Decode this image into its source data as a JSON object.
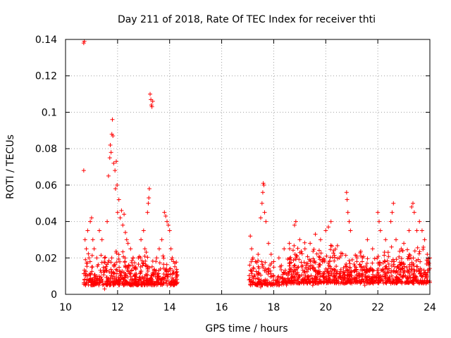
{
  "chart_data": {
    "type": "scatter",
    "title": "Day 211 of 2018, Rate Of TEC Index for receiver thti",
    "xlabel": "GPS time / hours",
    "ylabel": "ROTI / TECUs",
    "xlim": [
      10,
      24
    ],
    "ylim": [
      0,
      0.14
    ],
    "x_ticks": [
      10,
      12,
      14,
      16,
      18,
      20,
      22,
      24
    ],
    "x_tick_labels": [
      "10",
      "12",
      "14",
      "16",
      "18",
      "20",
      "22",
      "24"
    ],
    "y_ticks": [
      0,
      0.02,
      0.04,
      0.06,
      0.08,
      0.1,
      0.12,
      0.14
    ],
    "y_tick_labels": [
      "0",
      "0.02",
      "0.04",
      "0.06",
      "0.08",
      "0.1",
      "0.12",
      "0.14"
    ],
    "grid": true,
    "marker": "+",
    "series": [
      {
        "name": "ROTI",
        "color": "#ff0000",
        "points": [
          [
            10.7,
            0.138
          ],
          [
            10.72,
            0.139
          ],
          [
            10.7,
            0.068
          ],
          [
            10.75,
            0.03
          ],
          [
            10.8,
            0.025
          ],
          [
            10.85,
            0.035
          ],
          [
            10.9,
            0.02
          ],
          [
            10.95,
            0.04
          ],
          [
            11.0,
            0.042
          ],
          [
            11.05,
            0.03
          ],
          [
            11.1,
            0.025
          ],
          [
            11.2,
            0.02
          ],
          [
            11.3,
            0.035
          ],
          [
            11.4,
            0.03
          ],
          [
            11.5,
            0.02
          ],
          [
            11.6,
            0.04
          ],
          [
            11.65,
            0.065
          ],
          [
            11.7,
            0.075
          ],
          [
            11.72,
            0.082
          ],
          [
            11.75,
            0.078
          ],
          [
            11.78,
            0.088
          ],
          [
            11.8,
            0.096
          ],
          [
            11.82,
            0.087
          ],
          [
            11.85,
            0.072
          ],
          [
            11.9,
            0.068
          ],
          [
            11.92,
            0.058
          ],
          [
            11.95,
            0.073
          ],
          [
            11.98,
            0.06
          ],
          [
            12.0,
            0.045
          ],
          [
            12.05,
            0.052
          ],
          [
            12.1,
            0.042
          ],
          [
            12.15,
            0.046
          ],
          [
            12.2,
            0.038
          ],
          [
            12.25,
            0.044
          ],
          [
            12.3,
            0.034
          ],
          [
            12.35,
            0.03
          ],
          [
            12.4,
            0.028
          ],
          [
            12.5,
            0.025
          ],
          [
            12.6,
            0.02
          ],
          [
            12.7,
            0.015
          ],
          [
            12.8,
            0.02
          ],
          [
            12.9,
            0.03
          ],
          [
            13.0,
            0.035
          ],
          [
            13.05,
            0.025
          ],
          [
            13.15,
            0.045
          ],
          [
            13.18,
            0.05
          ],
          [
            13.2,
            0.053
          ],
          [
            13.22,
            0.058
          ],
          [
            13.25,
            0.11
          ],
          [
            13.28,
            0.107
          ],
          [
            13.3,
            0.104
          ],
          [
            13.32,
            0.103
          ],
          [
            13.35,
            0.106
          ],
          [
            13.5,
            0.02
          ],
          [
            13.6,
            0.025
          ],
          [
            13.7,
            0.03
          ],
          [
            13.8,
            0.045
          ],
          [
            13.85,
            0.043
          ],
          [
            13.9,
            0.04
          ],
          [
            13.95,
            0.038
          ],
          [
            14.0,
            0.035
          ],
          [
            14.05,
            0.025
          ],
          [
            14.1,
            0.02
          ],
          [
            14.15,
            0.018
          ],
          [
            14.2,
            0.017
          ],
          [
            14.25,
            0.012
          ],
          [
            14.28,
            0.01
          ],
          [
            11.5,
            0.003
          ],
          [
            12.0,
            0.006
          ],
          [
            12.5,
            0.005
          ],
          [
            13.0,
            0.006
          ],
          [
            13.5,
            0.007
          ],
          [
            14.0,
            0.006
          ],
          [
            17.1,
            0.032
          ],
          [
            17.15,
            0.025
          ],
          [
            17.2,
            0.02
          ],
          [
            17.3,
            0.018
          ],
          [
            17.4,
            0.022
          ],
          [
            17.5,
            0.042
          ],
          [
            17.55,
            0.05
          ],
          [
            17.58,
            0.056
          ],
          [
            17.6,
            0.061
          ],
          [
            17.62,
            0.06
          ],
          [
            17.65,
            0.045
          ],
          [
            17.7,
            0.04
          ],
          [
            17.8,
            0.028
          ],
          [
            17.9,
            0.022
          ],
          [
            18.0,
            0.018
          ],
          [
            18.2,
            0.02
          ],
          [
            18.4,
            0.025
          ],
          [
            18.6,
            0.028
          ],
          [
            18.8,
            0.038
          ],
          [
            18.85,
            0.04
          ],
          [
            19.0,
            0.03
          ],
          [
            19.2,
            0.025
          ],
          [
            19.4,
            0.028
          ],
          [
            19.6,
            0.033
          ],
          [
            19.8,
            0.03
          ],
          [
            20.0,
            0.035
          ],
          [
            20.1,
            0.037
          ],
          [
            20.2,
            0.04
          ],
          [
            20.8,
            0.056
          ],
          [
            20.82,
            0.052
          ],
          [
            20.85,
            0.045
          ],
          [
            20.9,
            0.04
          ],
          [
            20.95,
            0.035
          ],
          [
            21.2,
            0.02
          ],
          [
            21.4,
            0.018
          ],
          [
            21.6,
            0.03
          ],
          [
            21.8,
            0.025
          ],
          [
            22.0,
            0.045
          ],
          [
            22.05,
            0.04
          ],
          [
            22.1,
            0.035
          ],
          [
            22.3,
            0.03
          ],
          [
            22.5,
            0.04
          ],
          [
            22.55,
            0.045
          ],
          [
            22.6,
            0.05
          ],
          [
            22.7,
            0.03
          ],
          [
            22.9,
            0.025
          ],
          [
            23.0,
            0.028
          ],
          [
            23.2,
            0.035
          ],
          [
            23.3,
            0.048
          ],
          [
            23.35,
            0.05
          ],
          [
            23.4,
            0.045
          ],
          [
            23.5,
            0.035
          ],
          [
            23.6,
            0.04
          ],
          [
            23.7,
            0.035
          ],
          [
            23.8,
            0.03
          ],
          [
            23.9,
            0.022
          ],
          [
            24.0,
            0.02
          ],
          [
            17.5,
            0.004
          ],
          [
            18.5,
            0.006
          ],
          [
            19.5,
            0.005
          ],
          [
            20.5,
            0.006
          ],
          [
            21.5,
            0.005
          ],
          [
            22.5,
            0.006
          ],
          [
            23.5,
            0.007
          ]
        ],
        "clusters": [
          {
            "x_range": [
              10.7,
              11.9
            ],
            "y_range": [
              0.005,
              0.025
            ],
            "count": 160
          },
          {
            "x_range": [
              11.9,
              13.2
            ],
            "y_range": [
              0.005,
              0.025
            ],
            "count": 220
          },
          {
            "x_range": [
              13.2,
              14.3
            ],
            "y_range": [
              0.005,
              0.022
            ],
            "count": 150
          },
          {
            "x_range": [
              17.05,
              18.5
            ],
            "y_range": [
              0.005,
              0.02
            ],
            "count": 160
          },
          {
            "x_range": [
              18.5,
              20.5
            ],
            "y_range": [
              0.006,
              0.03
            ],
            "count": 320
          },
          {
            "x_range": [
              20.5,
              22.2
            ],
            "y_range": [
              0.006,
              0.025
            ],
            "count": 260
          },
          {
            "x_range": [
              22.2,
              24.0
            ],
            "y_range": [
              0.006,
              0.028
            ],
            "count": 280
          }
        ]
      }
    ]
  }
}
